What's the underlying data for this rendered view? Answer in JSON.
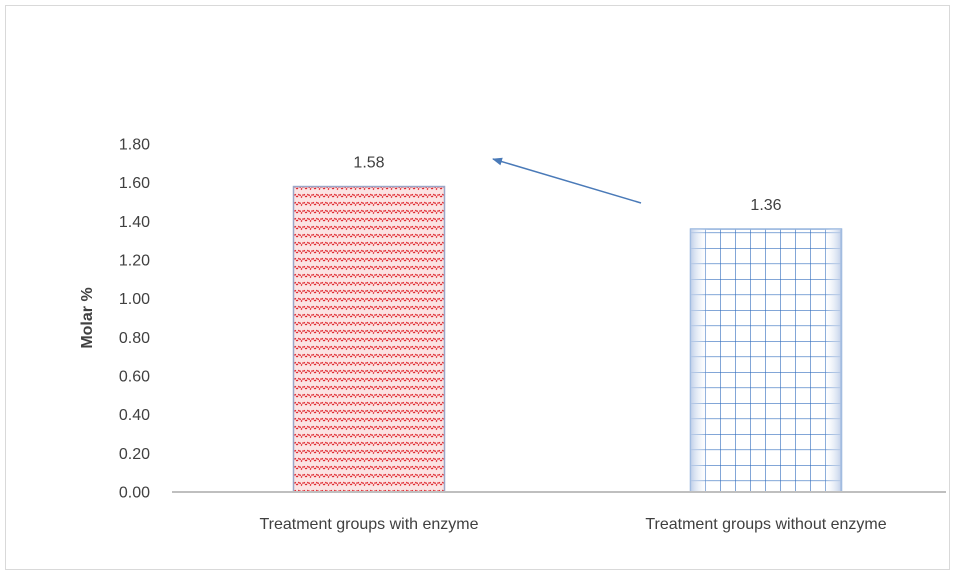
{
  "chart_data": {
    "type": "bar",
    "title": "",
    "xlabel": "",
    "ylabel": "Molar %",
    "ylim": [
      0,
      1.8
    ],
    "yticks": [
      "0.00",
      "0.20",
      "0.40",
      "0.60",
      "0.80",
      "1.00",
      "1.20",
      "1.40",
      "1.60",
      "1.80"
    ],
    "categories": [
      "Treatment groups with enzyme",
      "Treatment groups without enzyme"
    ],
    "values": [
      1.58,
      1.36
    ],
    "data_labels": [
      "1.58",
      "1.36"
    ],
    "grid": false,
    "legend": "none",
    "annotation": "arrow pointing from the without-enzyme bar toward the with-enzyme bar",
    "colors": {
      "bar1_pattern": "#e0242b",
      "bar1_background": "#fbe3e3",
      "bar1_outline": "#9aa6c8",
      "bar2_pattern": "#2e6bbd",
      "bar2_background": "#ffffff",
      "bar2_outline": "#8fb0dc",
      "arrow": "#4a7ab8",
      "axis": "#bfbfbf",
      "text": "#404040"
    },
    "bar_patterns": [
      "zigzag",
      "grid"
    ]
  }
}
